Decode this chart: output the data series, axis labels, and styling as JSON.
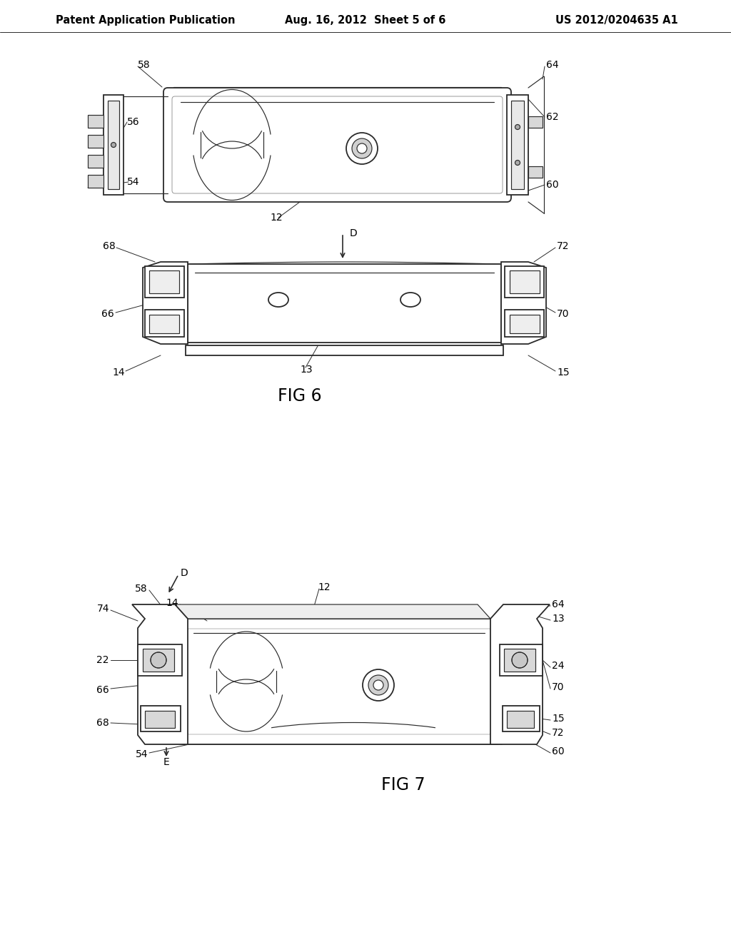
{
  "bg_color": "#ffffff",
  "lc": "#2a2a2a",
  "header_left": "Patent Application Publication",
  "header_mid": "Aug. 16, 2012  Sheet 5 of 6",
  "header_right": "US 2012/0204635 A1",
  "fig6_label": "FIG 6",
  "fig7_label": "FIG 7",
  "header_fontsize": 10.5,
  "fig_label_fontsize": 17,
  "ref_fontsize": 10
}
